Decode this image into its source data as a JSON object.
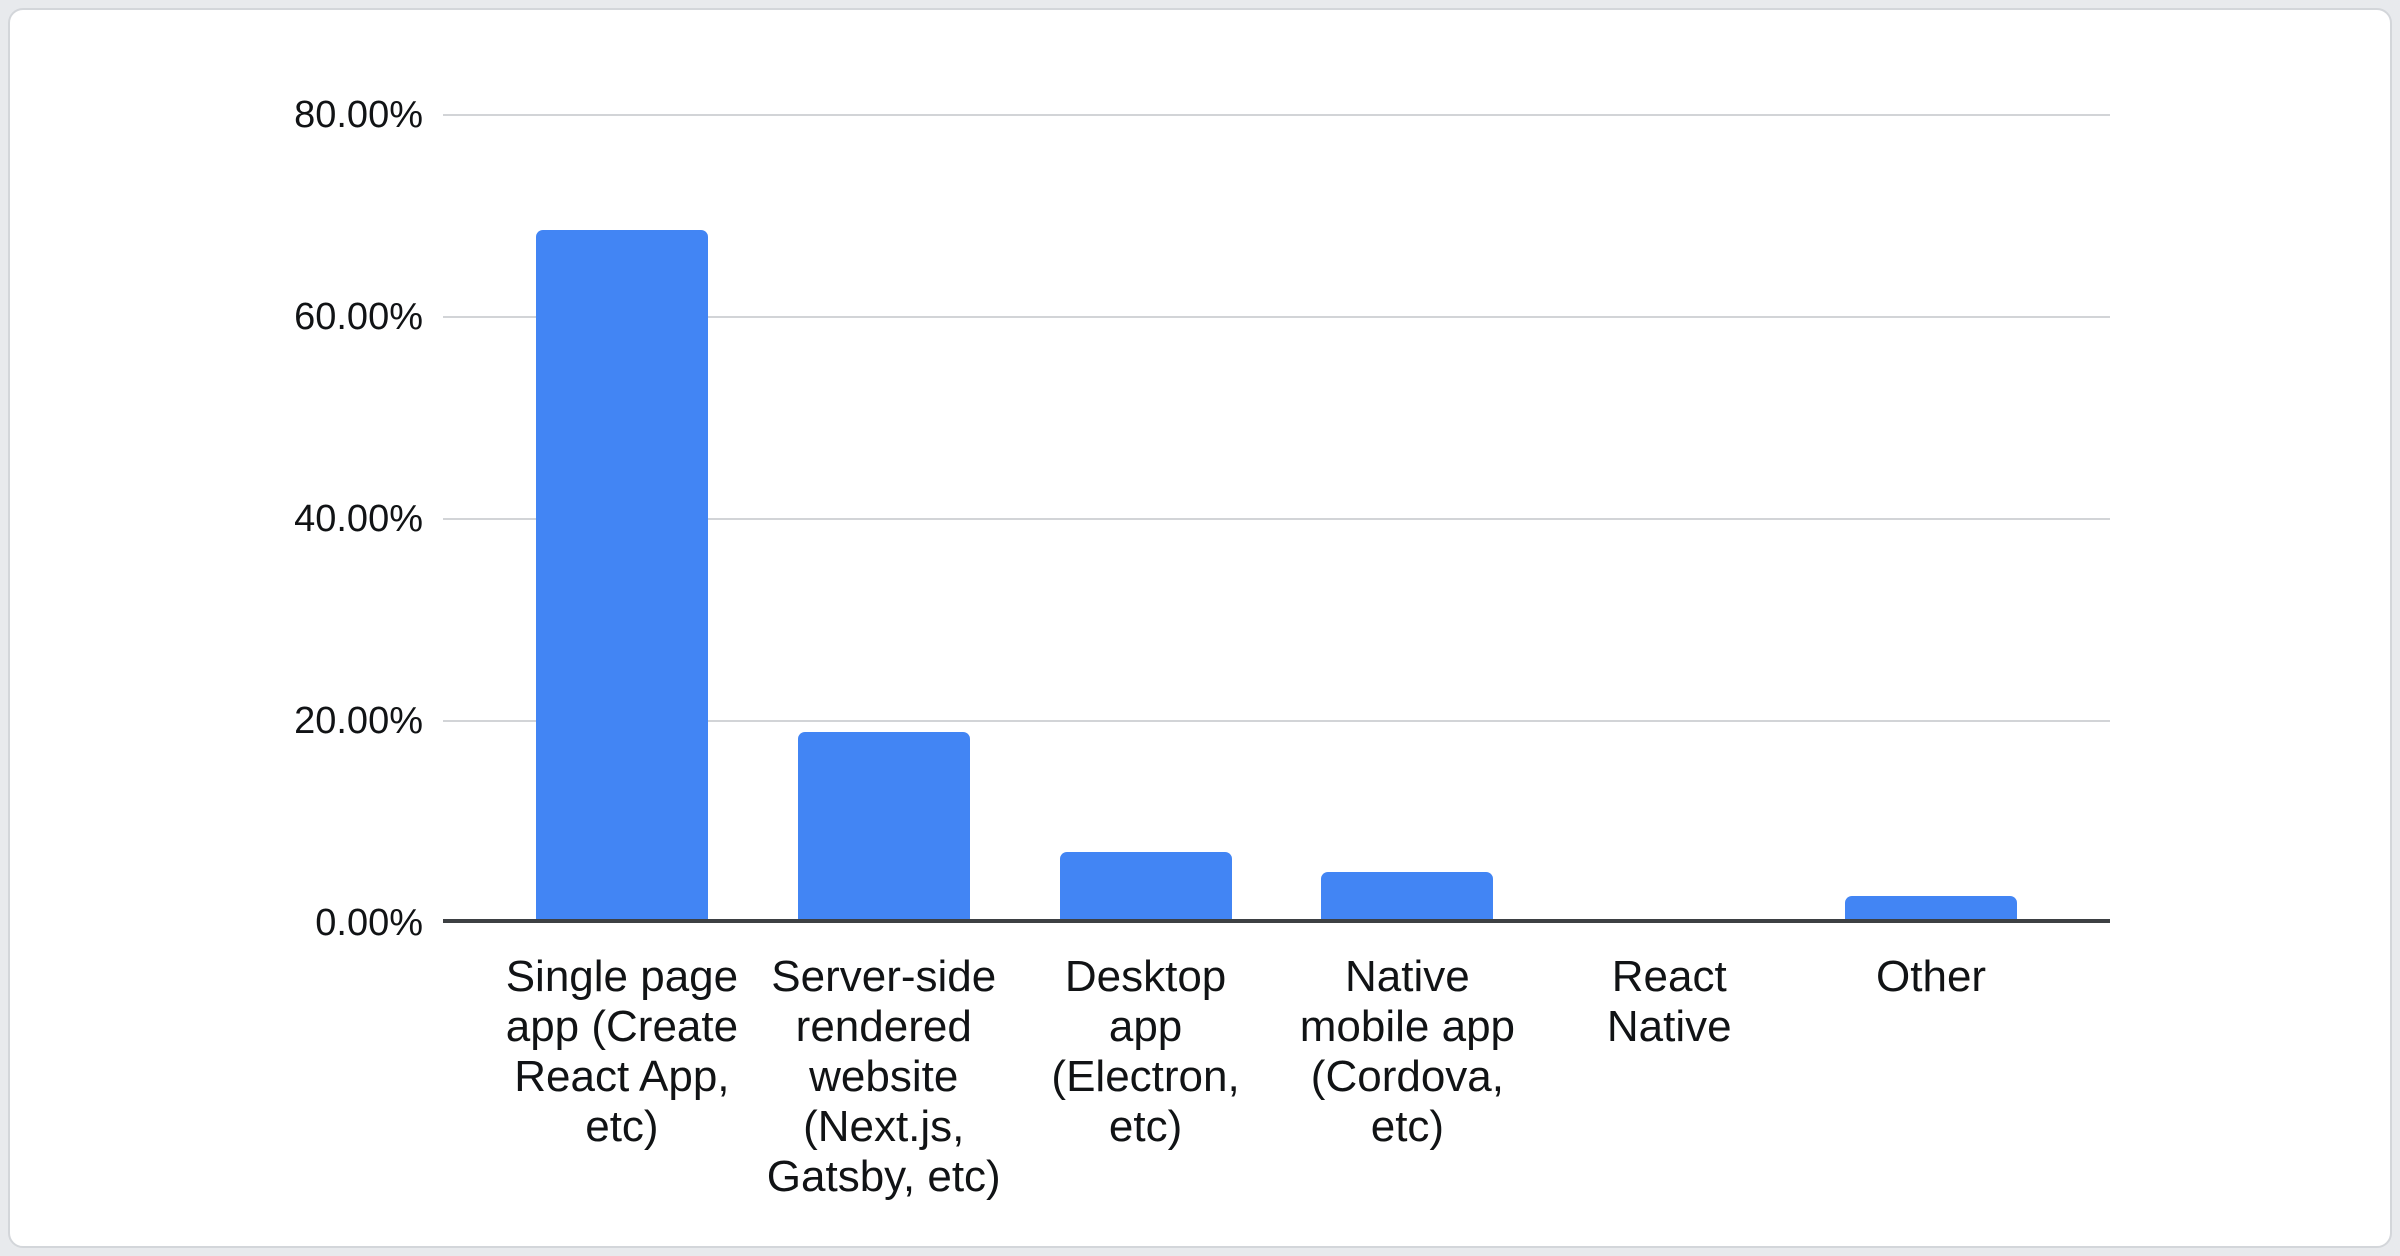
{
  "colors": {
    "bar": "#4285f4",
    "axis": "#3d4043",
    "grid": "#d2d4d7",
    "text": "#111315",
    "page_bg": "#e8eaed",
    "card_bg": "#ffffff",
    "card_border": "#d3d6da"
  },
  "chart_data": {
    "type": "bar",
    "title": "",
    "xlabel": "",
    "ylabel": "",
    "categories": [
      "Single page app (Create React App, etc)",
      "Server-side rendered website (Next.js, Gatsby, etc)",
      "Desktop app (Electron, etc)",
      "Native mobile app (Cordova, etc)",
      "React Native",
      "Other"
    ],
    "label_display": [
      "Single page\napp (Create\nReact App,\netc)",
      "Server-side\nrendered\nwebsite\n(Next.js,\nGatsby, etc)",
      "Desktop\napp\n(Electron,\netc)",
      "Native\nmobile app\n(Cordova,\netc)",
      "React\nNative",
      "Other"
    ],
    "slugs": [
      "single-page-app",
      "server-side-rendered-website",
      "desktop-app",
      "native-mobile-app",
      "react-native",
      "other"
    ],
    "values": [
      68.2,
      18.5,
      6.6,
      4.7,
      0,
      2.3
    ],
    "yticks": [
      "0.00%",
      "20.00%",
      "40.00%",
      "60.00%",
      "80.00%"
    ],
    "ylim": [
      0,
      80
    ],
    "grid": true,
    "legend": false,
    "bar_color": "#4285f4"
  }
}
